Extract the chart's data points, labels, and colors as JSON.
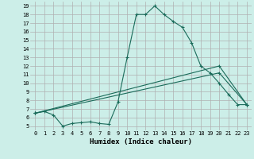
{
  "xlabel": "Humidex (Indice chaleur)",
  "background_color": "#cceee8",
  "grid_color": "#b0b0b0",
  "line_color": "#1a6b5a",
  "xlim": [
    -0.5,
    23.5
  ],
  "ylim": [
    4.5,
    19.5
  ],
  "xticks": [
    0,
    1,
    2,
    3,
    4,
    5,
    6,
    7,
    8,
    9,
    10,
    11,
    12,
    13,
    14,
    15,
    16,
    17,
    18,
    19,
    20,
    21,
    22,
    23
  ],
  "yticks": [
    5,
    6,
    7,
    8,
    9,
    10,
    11,
    12,
    13,
    14,
    15,
    16,
    17,
    18,
    19
  ],
  "series1_x": [
    0,
    1,
    2,
    3,
    4,
    5,
    6,
    7,
    8,
    9,
    10,
    11,
    12,
    13,
    14,
    15,
    16,
    17,
    18,
    19,
    20,
    21,
    22,
    23
  ],
  "series1_y": [
    6.5,
    6.7,
    6.3,
    5.0,
    5.3,
    5.4,
    5.5,
    5.3,
    5.2,
    7.8,
    13.0,
    18.0,
    18.0,
    19.0,
    18.0,
    17.2,
    16.5,
    14.7,
    12.0,
    11.2,
    10.0,
    8.7,
    7.5,
    7.5
  ],
  "series2_x": [
    0,
    20,
    23
  ],
  "series2_y": [
    6.5,
    12.0,
    7.5
  ],
  "series3_x": [
    0,
    20,
    23
  ],
  "series3_y": [
    6.5,
    11.2,
    7.5
  ],
  "tick_fontsize": 5.0,
  "xlabel_fontsize": 6.5
}
